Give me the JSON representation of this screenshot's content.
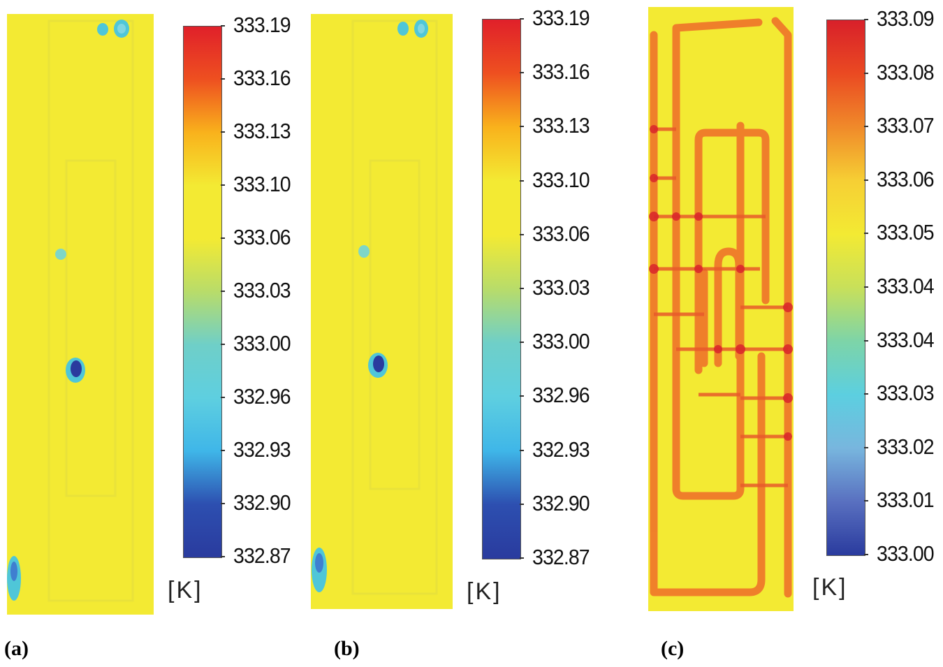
{
  "panels": [
    {
      "label": "(a)",
      "unit": "[K]",
      "ticks": [
        "333.19",
        "333.16",
        "333.13",
        "333.10",
        "333.06",
        "333.03",
        "333.00",
        "332.96",
        "332.93",
        "332.90",
        "332.87"
      ],
      "gradient": [
        "#e0202a",
        "#ee5020",
        "#f9b21c",
        "#f3ea33",
        "#f3ea33",
        "#b8dc6a",
        "#6fcfc8",
        "#5ecfe0",
        "#3fb6e8",
        "#2d4fb0",
        "#2a3b9e"
      ]
    },
    {
      "label": "(b)",
      "unit": "[K]",
      "ticks": [
        "333.19",
        "333.16",
        "333.13",
        "333.10",
        "333.06",
        "333.03",
        "333.00",
        "332.96",
        "332.93",
        "332.90",
        "332.87"
      ],
      "gradient": [
        "#e0202a",
        "#ee5020",
        "#f9b21c",
        "#f3ea33",
        "#f3ea33",
        "#b8dc6a",
        "#6fcfc8",
        "#5ecfe0",
        "#3fb6e8",
        "#2d4fb0",
        "#2a3b9e"
      ]
    },
    {
      "label": "(c)",
      "unit": "[K]",
      "ticks": [
        "333.09",
        "333.08",
        "333.07",
        "333.06",
        "333.05",
        "333.04",
        "333.04",
        "333.03",
        "333.02",
        "333.01",
        "333.00"
      ],
      "gradient": [
        "#d8202a",
        "#ea4a22",
        "#f08a2a",
        "#f6cf34",
        "#f3ea33",
        "#c8e05a",
        "#7dd4a8",
        "#5ccfe0",
        "#78b6de",
        "#5970c0",
        "#2a3b9e"
      ]
    }
  ]
}
